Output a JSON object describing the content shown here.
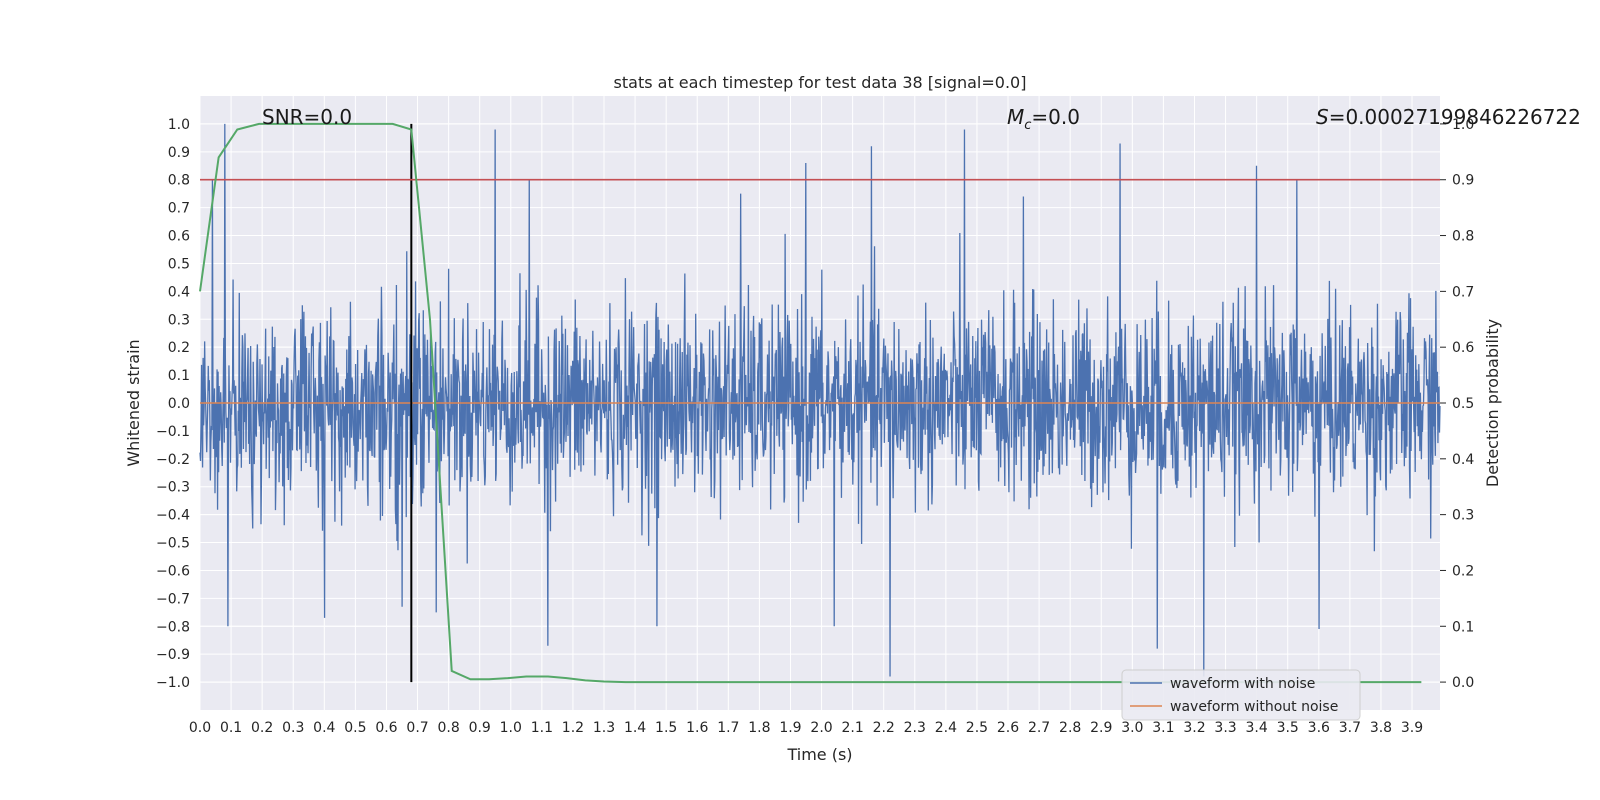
{
  "chart_data": {
    "type": "line",
    "title": "stats at each timestep for test data 38 [signal=0.0]",
    "xlabel": "Time (s)",
    "ylabel": "Whitened strain",
    "y2label": "Detection probability",
    "xlim": [
      0.0,
      3.99
    ],
    "ylim": [
      -1.1,
      1.1
    ],
    "y2lim": [
      -0.05,
      1.05
    ],
    "xticks": [
      "0.0",
      "0.1",
      "0.2",
      "0.3",
      "0.4",
      "0.5",
      "0.6",
      "0.7",
      "0.8",
      "0.9",
      "1.0",
      "1.1",
      "1.2",
      "1.3",
      "1.4",
      "1.5",
      "1.6",
      "1.7",
      "1.8",
      "1.9",
      "2.0",
      "2.1",
      "2.2",
      "2.3",
      "2.4",
      "2.5",
      "2.6",
      "2.7",
      "2.8",
      "2.9",
      "3.0",
      "3.1",
      "3.2",
      "3.3",
      "3.4",
      "3.5",
      "3.6",
      "3.7",
      "3.8",
      "3.9"
    ],
    "yticks": [
      "1.0",
      "0.9",
      "0.8",
      "0.7",
      "0.6",
      "0.5",
      "0.4",
      "0.3",
      "0.2",
      "0.1",
      "0.0",
      "−0.1",
      "−0.2",
      "−0.3",
      "−0.4",
      "−0.5",
      "−0.6",
      "−0.7",
      "−0.8",
      "−0.9",
      "−1.0"
    ],
    "y2ticks": [
      "1.0",
      "0.9",
      "0.8",
      "0.7",
      "0.6",
      "0.5",
      "0.4",
      "0.3",
      "0.2",
      "0.1",
      "0.0"
    ],
    "grid": true,
    "legend_position": "lower-right",
    "annotations": {
      "snr": "SNR=0.0",
      "mc_symbol": "M",
      "mc_sub": "c",
      "mc_value": "=0.0",
      "s_symbol": "S",
      "s_value": "=0.00027199846226722"
    },
    "series": [
      {
        "name": "waveform with noise",
        "color": "#4c72b0",
        "description": "dense noise, amplitude mostly within ±0.5 with spikes",
        "spikes": [
          [
            0.08,
            1.0
          ],
          [
            0.95,
            0.98
          ],
          [
            0.09,
            -0.8
          ],
          [
            1.12,
            -0.87
          ],
          [
            2.22,
            -0.98
          ],
          [
            3.23,
            -0.98
          ],
          [
            2.46,
            0.98
          ],
          [
            2.96,
            0.93
          ],
          [
            2.16,
            0.92
          ],
          [
            3.4,
            0.85
          ],
          [
            1.95,
            0.86
          ],
          [
            0.04,
            0.8
          ],
          [
            1.06,
            0.8
          ],
          [
            3.08,
            -0.88
          ],
          [
            3.6,
            -0.81
          ],
          [
            0.4,
            -0.77
          ],
          [
            1.47,
            -0.8
          ],
          [
            2.04,
            -0.8
          ],
          [
            3.53,
            0.8
          ],
          [
            0.65,
            -0.73
          ],
          [
            0.76,
            -0.75
          ],
          [
            1.74,
            0.75
          ],
          [
            2.65,
            0.74
          ]
        ]
      },
      {
        "name": "waveform without noise",
        "color": "#dd8452",
        "x": [
          0.0,
          3.99
        ],
        "y": [
          0.0,
          0.0
        ]
      },
      {
        "name": "detection probability",
        "color": "#55a868",
        "axis": "right",
        "x": [
          0.0,
          0.06,
          0.12,
          0.19,
          0.25,
          0.31,
          0.37,
          0.44,
          0.5,
          0.56,
          0.62,
          0.68,
          0.74,
          0.81,
          0.87,
          0.93,
          0.99,
          1.05,
          1.12,
          1.18,
          1.24,
          1.3,
          1.37,
          1.43,
          1.6,
          2.0,
          2.5,
          3.0,
          3.5,
          3.93
        ],
        "y": [
          0.7,
          0.94,
          0.99,
          1.0,
          1.0,
          1.0,
          1.0,
          1.0,
          1.0,
          1.0,
          1.0,
          0.99,
          0.65,
          0.02,
          0.005,
          0.005,
          0.007,
          0.01,
          0.01,
          0.007,
          0.003,
          0.001,
          0.0,
          0.0,
          0.0,
          0.0,
          0.0,
          0.0,
          0.0,
          0.0
        ]
      }
    ],
    "reference_lines": [
      {
        "kind": "vertical",
        "x": 0.68,
        "from": -1.0,
        "to": 1.0,
        "color": "#000000"
      },
      {
        "kind": "horizontal",
        "axis": "right",
        "y": 0.9,
        "color": "#c44e52"
      }
    ]
  }
}
